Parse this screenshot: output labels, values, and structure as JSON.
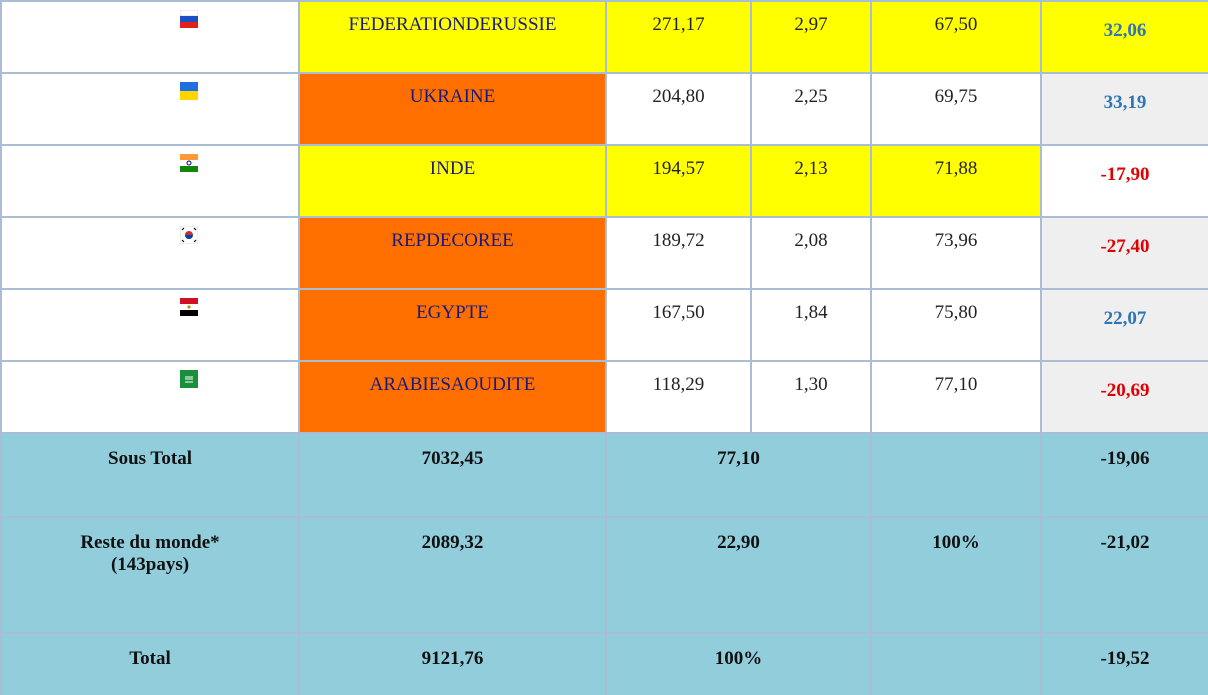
{
  "table": {
    "rows": [
      {
        "name": "FEDERATIONDERUSSIE",
        "value": "271,17",
        "share": "2,97",
        "cumulative": "67,50",
        "change": "32,06"
      },
      {
        "name": "UKRAINE",
        "value": "204,80",
        "share": "2,25",
        "cumulative": "69,75",
        "change": "33,19"
      },
      {
        "name": "INDE",
        "value": "194,57",
        "share": "2,13",
        "cumulative": "71,88",
        "change": "-17,90"
      },
      {
        "name": "REPDECOREE",
        "value": "189,72",
        "share": "2,08",
        "cumulative": "73,96",
        "change": "-27,40"
      },
      {
        "name": "EGYPTE",
        "value": "167,50",
        "share": "1,84",
        "cumulative": "75,80",
        "change": "22,07"
      },
      {
        "name": "ARABIESAOUDITE",
        "value": "118,29",
        "share": "1,30",
        "cumulative": "77,10",
        "change": "-20,69"
      }
    ],
    "totals": [
      {
        "label": "Sous Total",
        "value": "7032,45",
        "share": "77,10",
        "change": "-19,06"
      },
      {
        "label": "Reste du monde*(143pays)",
        "value": "2089,32",
        "share": "22,90",
        "cumulative": "100%",
        "change": "-21,02"
      },
      {
        "label": "Total",
        "value": "9121,76",
        "share": "100%",
        "change": "-19,52"
      }
    ]
  }
}
